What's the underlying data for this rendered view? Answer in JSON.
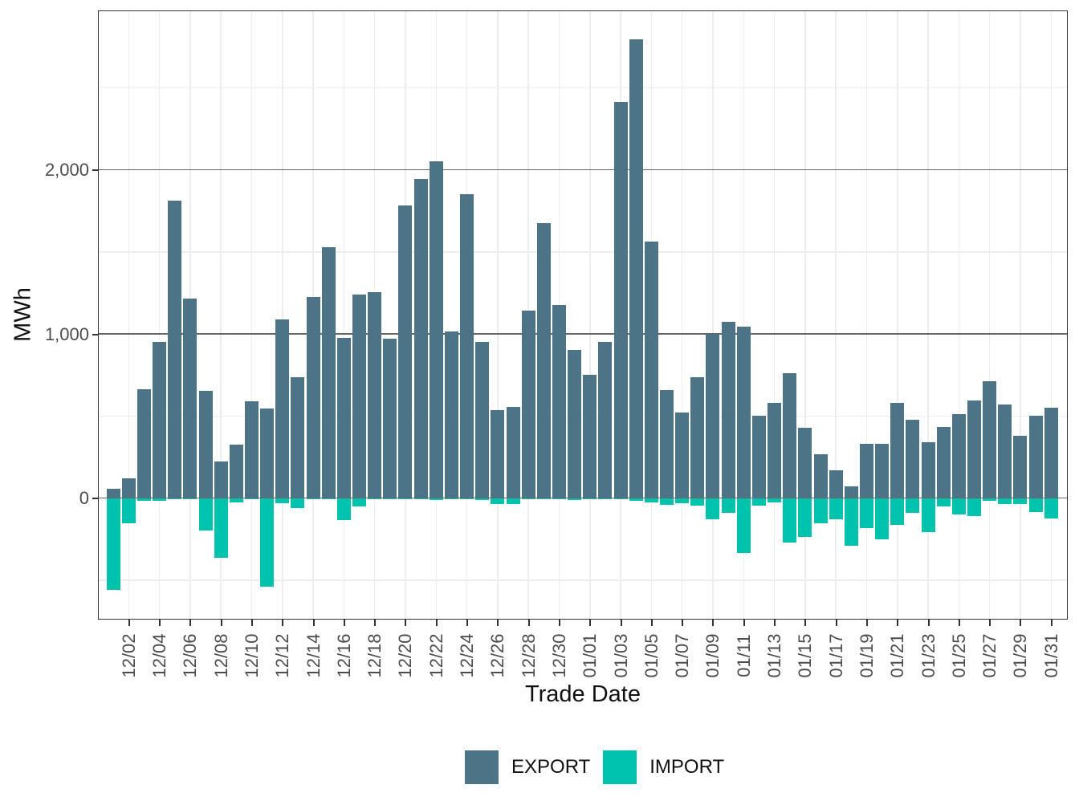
{
  "chart_data": {
    "type": "bar",
    "title": "",
    "xlabel": "Trade Date",
    "ylabel": "MWh",
    "legend_position": "bottom",
    "grid": true,
    "categories": [
      "12/01",
      "12/02",
      "12/03",
      "12/04",
      "12/05",
      "12/06",
      "12/07",
      "12/08",
      "12/09",
      "12/10",
      "12/11",
      "12/12",
      "12/13",
      "12/14",
      "12/15",
      "12/16",
      "12/17",
      "12/18",
      "12/19",
      "12/20",
      "12/21",
      "12/22",
      "12/23",
      "12/24",
      "12/25",
      "12/26",
      "12/27",
      "12/28",
      "12/29",
      "12/30",
      "12/31",
      "01/01",
      "01/02",
      "01/03",
      "01/04",
      "01/05",
      "01/06",
      "01/07",
      "01/08",
      "01/09",
      "01/10",
      "01/11",
      "01/12",
      "01/13",
      "01/14",
      "01/15",
      "01/16",
      "01/17",
      "01/18",
      "01/19",
      "01/20",
      "01/21",
      "01/22",
      "01/23",
      "01/24",
      "01/25",
      "01/26",
      "01/27",
      "01/28",
      "01/29",
      "01/30",
      "01/31"
    ],
    "series": [
      {
        "name": "EXPORT",
        "color": "#4d7386",
        "values": [
          55,
          122,
          665,
          951,
          1814,
          1217,
          655,
          222,
          325,
          590,
          545,
          1090,
          735,
          1227,
          1527,
          974,
          1240,
          1255,
          970,
          1781,
          1944,
          2052,
          1015,
          1851,
          951,
          534,
          554,
          1142,
          1677,
          1178,
          900,
          753,
          950,
          2415,
          2793,
          1564,
          658,
          520,
          737,
          1001,
          1074,
          1044,
          500,
          580,
          760,
          430,
          266,
          168,
          73,
          331,
          331,
          578,
          478,
          342,
          434,
          510,
          592,
          710,
          572,
          380,
          502,
          551
        ]
      },
      {
        "name": "IMPORT",
        "color": "#00c3ad",
        "values": [
          -558,
          -153,
          -16,
          -16,
          -4,
          -5,
          -199,
          -362,
          -28,
          -4,
          -541,
          -31,
          -60,
          -6,
          -6,
          -134,
          -49,
          -6,
          -8,
          -5,
          -5,
          -11,
          -4,
          -8,
          -11,
          -38,
          -38,
          -8,
          -6,
          -6,
          -10,
          -4,
          -6,
          -5,
          -15,
          -25,
          -42,
          -30,
          -45,
          -130,
          -90,
          -335,
          -45,
          -28,
          -269,
          -235,
          -153,
          -130,
          -293,
          -183,
          -251,
          -163,
          -90,
          -207,
          -52,
          -98,
          -111,
          -16,
          -36,
          -36,
          -85,
          -126
        ]
      }
    ],
    "y_axis": {
      "ticks": [
        0,
        1000,
        2000
      ],
      "tick_labels": [
        "0",
        "1,000",
        "2,000"
      ],
      "minor_gridlines": [
        -500,
        500,
        1500,
        2500
      ],
      "ylim": [
        -733,
        2968
      ]
    },
    "x_axis": {
      "tick_labels": [
        "12/02",
        "12/04",
        "12/06",
        "12/08",
        "12/10",
        "12/12",
        "12/14",
        "12/16",
        "12/18",
        "12/20",
        "12/22",
        "12/24",
        "12/26",
        "12/28",
        "12/30",
        "01/01",
        "01/03",
        "01/05",
        "01/07",
        "01/09",
        "01/11",
        "01/13",
        "01/15",
        "01/17",
        "01/19",
        "01/21",
        "01/23",
        "01/25",
        "01/27",
        "01/29",
        "01/31"
      ],
      "first_tick_index": 1,
      "tick_every_days": 2
    }
  }
}
